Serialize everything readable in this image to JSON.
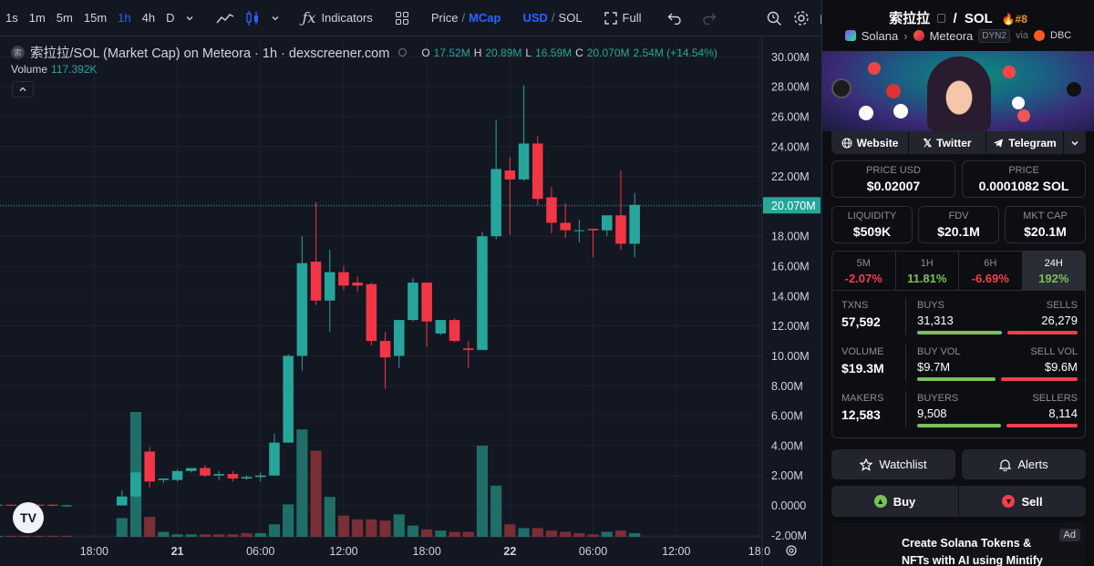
{
  "toolbar": {
    "timeframes": [
      "1s",
      "1m",
      "5m",
      "15m",
      "1h",
      "4h",
      "D"
    ],
    "active_timeframe": "1h",
    "indicators_label": "Indicators",
    "price_label": "Price",
    "mcap_label": "MCap",
    "usd_label": "USD",
    "sol_label": "SOL",
    "full_label": "Full",
    "slash": "/"
  },
  "chart": {
    "legend_title": "索拉拉/SOL (Market Cap) on Meteora · 1h · dexscreener.com",
    "coin_glyph": "索",
    "ohlc": {
      "o_label": "O",
      "o": "17.52M",
      "h_label": "H",
      "h": "20.89M",
      "l_label": "L",
      "l": "16.59M",
      "c_label": "C",
      "c": "20.070M",
      "change": "2.54M (+14.54%)"
    },
    "volume_label": "Volume",
    "volume_value": "117.392K",
    "logo_text": "TV",
    "current_price_label": "20.070M"
  },
  "chart_data": {
    "type": "candlestick",
    "y_unit": "market cap (USD)",
    "y_ticks": [
      "30.00M",
      "28.00M",
      "26.00M",
      "24.00M",
      "22.00M",
      "20.00M",
      "18.00M",
      "16.00M",
      "14.00M",
      "12.00M",
      "10.00M",
      "8.00M",
      "6.00M",
      "4.00M",
      "2.00M",
      "0.0000",
      "-2.00M"
    ],
    "y_tick_values": [
      30,
      28,
      26,
      24,
      22,
      20,
      18,
      16,
      14,
      12,
      10,
      8,
      6,
      4,
      2,
      0,
      -2
    ],
    "ylim": [
      -2.1,
      31.3
    ],
    "x_ticks": [
      "18:00",
      "21",
      "06:00",
      "12:00",
      "18:00",
      "22",
      "06:00",
      "12:00",
      "18:0"
    ],
    "x_tick_hours": [
      18,
      24,
      30,
      36,
      42,
      48,
      54,
      60,
      66
    ],
    "xlim": [
      11.2,
      66.2
    ],
    "last_value": 20.07,
    "candles": [
      {
        "t": 11,
        "o": 0,
        "h": 0.05,
        "l": -0.05,
        "c": 0.05
      },
      {
        "t": 12,
        "o": 0.05,
        "h": 0.05,
        "l": -0.05,
        "c": 0
      },
      {
        "t": 13,
        "o": 0,
        "h": 0.05,
        "l": -0.05,
        "c": 0
      },
      {
        "t": 14,
        "o": 0.05,
        "h": 0.05,
        "l": -0.05,
        "c": 0
      },
      {
        "t": 15,
        "o": 0.05,
        "h": 0.05,
        "l": -0.05,
        "c": 0
      },
      {
        "t": 16,
        "o": 0,
        "h": 0.05,
        "l": -0.05,
        "c": 0
      },
      {
        "t": 20,
        "o": 0,
        "h": 1.0,
        "l": 0,
        "c": 0.6
      },
      {
        "t": 21,
        "o": 0.6,
        "h": 2.3,
        "l": 0.5,
        "c": 2.2
      },
      {
        "t": 22,
        "o": 3.6,
        "h": 3.9,
        "l": 1.2,
        "c": 1.6
      },
      {
        "t": 23,
        "o": 1.7,
        "h": 1.8,
        "l": 1.5,
        "c": 1.8
      },
      {
        "t": 24,
        "o": 1.7,
        "h": 2.4,
        "l": 1.6,
        "c": 2.3
      },
      {
        "t": 25,
        "o": 2.3,
        "h": 2.5,
        "l": 2.2,
        "c": 2.5
      },
      {
        "t": 26,
        "o": 2.5,
        "h": 2.7,
        "l": 1.9,
        "c": 2.0
      },
      {
        "t": 27,
        "o": 2.0,
        "h": 2.3,
        "l": 1.7,
        "c": 2.1
      },
      {
        "t": 28,
        "o": 2.1,
        "h": 2.3,
        "l": 1.6,
        "c": 1.8
      },
      {
        "t": 29,
        "o": 1.8,
        "h": 2.0,
        "l": 1.7,
        "c": 1.9
      },
      {
        "t": 30,
        "o": 1.9,
        "h": 2.2,
        "l": 1.6,
        "c": 2.0
      },
      {
        "t": 31,
        "o": 2.0,
        "h": 4.8,
        "l": 2.0,
        "c": 4.2
      },
      {
        "t": 32,
        "o": 4.2,
        "h": 10.1,
        "l": 4.2,
        "c": 10.0
      },
      {
        "t": 33,
        "o": 10.0,
        "h": 18.0,
        "l": 9.0,
        "c": 16.2
      },
      {
        "t": 34,
        "o": 16.3,
        "h": 20.3,
        "l": 13.4,
        "c": 13.7
      },
      {
        "t": 35,
        "o": 13.7,
        "h": 17.1,
        "l": 11.6,
        "c": 15.6
      },
      {
        "t": 36,
        "o": 15.6,
        "h": 16.0,
        "l": 14.4,
        "c": 14.7
      },
      {
        "t": 37,
        "o": 14.9,
        "h": 15.3,
        "l": 14.3,
        "c": 14.7
      },
      {
        "t": 38,
        "o": 14.8,
        "h": 14.9,
        "l": 10.7,
        "c": 11.0
      },
      {
        "t": 39,
        "o": 11.0,
        "h": 11.6,
        "l": 7.8,
        "c": 9.9
      },
      {
        "t": 40,
        "o": 10.0,
        "h": 12.3,
        "l": 9.2,
        "c": 12.4
      },
      {
        "t": 41,
        "o": 12.4,
        "h": 15.2,
        "l": 12.3,
        "c": 14.9
      },
      {
        "t": 42,
        "o": 14.9,
        "h": 14.9,
        "l": 10.6,
        "c": 12.3
      },
      {
        "t": 43,
        "o": 11.5,
        "h": 12.4,
        "l": 11.4,
        "c": 12.4
      },
      {
        "t": 44,
        "o": 12.4,
        "h": 12.5,
        "l": 10.9,
        "c": 11.0
      },
      {
        "t": 45,
        "o": 10.5,
        "h": 11.0,
        "l": 9.2,
        "c": 10.4
      },
      {
        "t": 46,
        "o": 10.4,
        "h": 18.3,
        "l": 10.4,
        "c": 18.0
      },
      {
        "t": 47,
        "o": 18.0,
        "h": 25.8,
        "l": 17.8,
        "c": 22.5
      },
      {
        "t": 48,
        "o": 22.4,
        "h": 23.3,
        "l": 18.1,
        "c": 21.8
      },
      {
        "t": 49,
        "o": 21.8,
        "h": 28.1,
        "l": 21.7,
        "c": 24.2
      },
      {
        "t": 50,
        "o": 24.2,
        "h": 24.7,
        "l": 20.1,
        "c": 20.5
      },
      {
        "t": 51,
        "o": 20.6,
        "h": 21.3,
        "l": 18.2,
        "c": 18.9
      },
      {
        "t": 52,
        "o": 18.9,
        "h": 20.2,
        "l": 17.9,
        "c": 18.4
      },
      {
        "t": 53,
        "o": 18.4,
        "h": 19.1,
        "l": 17.6,
        "c": 18.4
      },
      {
        "t": 54,
        "o": 18.5,
        "h": 18.5,
        "l": 16.6,
        "c": 18.4
      },
      {
        "t": 55,
        "o": 18.4,
        "h": 19.4,
        "l": 18.0,
        "c": 19.4
      },
      {
        "t": 56,
        "o": 19.4,
        "h": 22.4,
        "l": 17.1,
        "c": 17.5
      },
      {
        "t": 57,
        "o": 17.5,
        "h": 20.9,
        "l": 16.6,
        "c": 20.1
      }
    ],
    "volume": [
      {
        "t": 11,
        "v": 0.3,
        "up": true
      },
      {
        "t": 12,
        "v": 0.2,
        "up": false
      },
      {
        "t": 13,
        "v": 0.2,
        "up": false
      },
      {
        "t": 14,
        "v": 0.2,
        "up": false
      },
      {
        "t": 15,
        "v": 0.2,
        "up": false
      },
      {
        "t": 16,
        "v": 0.2,
        "up": false
      },
      {
        "t": 20,
        "v": 15.0,
        "up": true
      },
      {
        "t": 21,
        "v": 100.0,
        "up": true
      },
      {
        "t": 22,
        "v": 16.0,
        "up": false
      },
      {
        "t": 23,
        "v": 4.0,
        "up": true
      },
      {
        "t": 24,
        "v": 2.0,
        "up": true
      },
      {
        "t": 25,
        "v": 2.0,
        "up": true
      },
      {
        "t": 26,
        "v": 2.0,
        "up": false
      },
      {
        "t": 27,
        "v": 2.0,
        "up": false
      },
      {
        "t": 28,
        "v": 2.0,
        "up": false
      },
      {
        "t": 29,
        "v": 3.0,
        "up": false
      },
      {
        "t": 30,
        "v": 3.0,
        "up": true
      },
      {
        "t": 31,
        "v": 10.0,
        "up": true
      },
      {
        "t": 32,
        "v": 26.0,
        "up": true
      },
      {
        "t": 33,
        "v": 86.0,
        "up": true
      },
      {
        "t": 34,
        "v": 69.0,
        "up": false
      },
      {
        "t": 35,
        "v": 32.0,
        "up": true
      },
      {
        "t": 36,
        "v": 17.0,
        "up": false
      },
      {
        "t": 37,
        "v": 14.0,
        "up": false
      },
      {
        "t": 38,
        "v": 14.0,
        "up": false
      },
      {
        "t": 39,
        "v": 13.0,
        "up": false
      },
      {
        "t": 40,
        "v": 18.0,
        "up": true
      },
      {
        "t": 41,
        "v": 9.0,
        "up": true
      },
      {
        "t": 42,
        "v": 6.0,
        "up": false
      },
      {
        "t": 43,
        "v": 5.0,
        "up": true
      },
      {
        "t": 44,
        "v": 4.0,
        "up": false
      },
      {
        "t": 45,
        "v": 4.0,
        "up": false
      },
      {
        "t": 46,
        "v": 73.0,
        "up": true
      },
      {
        "t": 47,
        "v": 41.0,
        "up": true
      },
      {
        "t": 48,
        "v": 10.0,
        "up": false
      },
      {
        "t": 49,
        "v": 7.0,
        "up": true
      },
      {
        "t": 50,
        "v": 7.0,
        "up": false
      },
      {
        "t": 51,
        "v": 5.0,
        "up": false
      },
      {
        "t": 52,
        "v": 4.0,
        "up": false
      },
      {
        "t": 53,
        "v": 3.0,
        "up": false
      },
      {
        "t": 54,
        "v": 2.0,
        "up": false
      },
      {
        "t": 55,
        "v": 4.0,
        "up": true
      },
      {
        "t": 56,
        "v": 5.0,
        "up": false
      },
      {
        "t": 57,
        "v": 3.0,
        "up": true
      }
    ],
    "colors": {
      "up": "#26a69a",
      "down": "#f23645",
      "up_vol": "#1f6f68",
      "down_vol": "#7a2e36"
    }
  },
  "sidebar": {
    "token_name": "索拉拉",
    "separator": "/",
    "quote": "SOL",
    "rank": "#8",
    "chain": "Solana",
    "dex": "Meteora",
    "dex_tag": "DYN2",
    "via": "via",
    "via_source": "DBC",
    "links": {
      "website": "Website",
      "twitter": "Twitter",
      "telegram": "Telegram"
    },
    "price_usd_label": "PRICE USD",
    "price_usd": "$0.02007",
    "price_label": "PRICE",
    "price_sol": "0.0001082 SOL",
    "liquidity_label": "LIQUIDITY",
    "liquidity": "$509K",
    "fdv_label": "FDV",
    "fdv": "$20.1M",
    "mktcap_label": "MKT CAP",
    "mktcap": "$20.1M",
    "changes": [
      {
        "label": "5M",
        "value": "-2.07%",
        "color": "#f23f4b"
      },
      {
        "label": "1H",
        "value": "11.81%",
        "color": "#78c257"
      },
      {
        "label": "6H",
        "value": "-6.69%",
        "color": "#f23f4b"
      },
      {
        "label": "24H",
        "value": "192%",
        "color": "#78c257"
      }
    ],
    "txns_label": "TXNS",
    "txns": "57,592",
    "buys_label": "BUYS",
    "buys": "31,313",
    "sells_label": "SELLS",
    "sells": "26,279",
    "buy_share": 0.544,
    "volume_label": "VOLUME",
    "volume": "$19.3M",
    "buy_vol_label": "BUY VOL",
    "buy_vol": "$9.7M",
    "sell_vol_label": "SELL VOL",
    "sell_vol": "$9.6M",
    "buy_vol_share": 0.503,
    "makers_label": "MAKERS",
    "makers": "12,583",
    "buyers_label": "BUYERS",
    "buyers": "9,508",
    "sellers_label": "SELLERS",
    "sellers": "8,114",
    "buyer_share": 0.54,
    "watchlist_label": "Watchlist",
    "alerts_label": "Alerts",
    "buy_label": "Buy",
    "sell_label": "Sell",
    "ad_tag": "Ad",
    "ad_text": "Create Solana Tokens & NFTs with AI using Mintify"
  }
}
